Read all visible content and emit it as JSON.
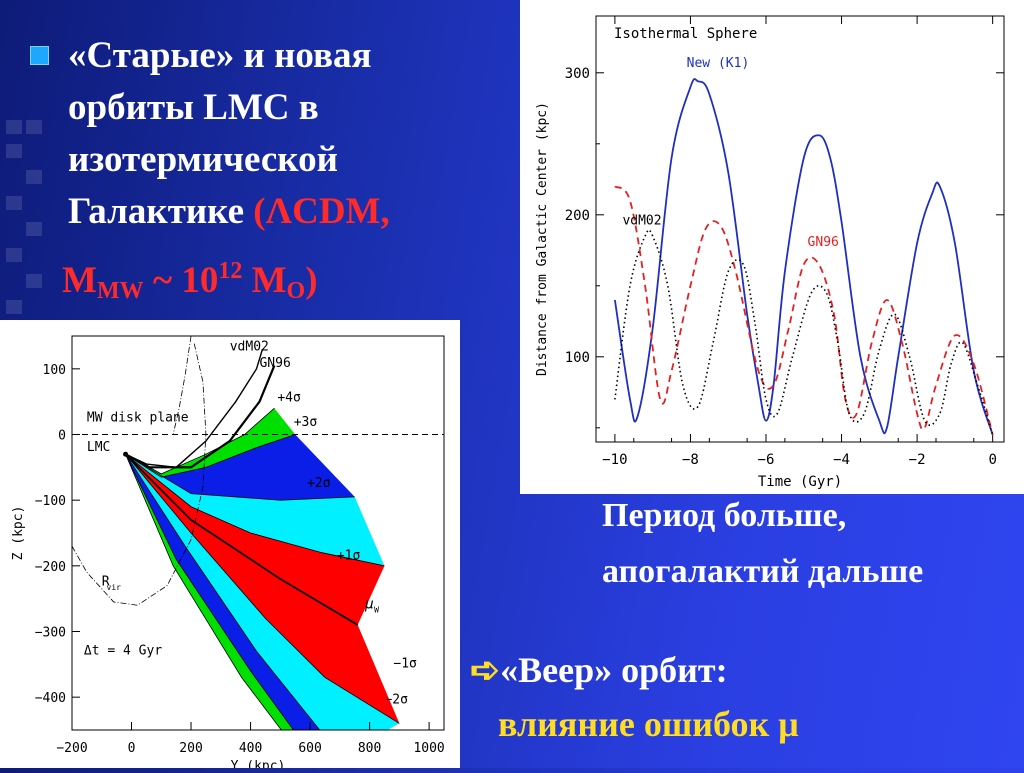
{
  "slide": {
    "bullet_marker": "square-bullet",
    "bullet_line1": "«Старые» и новая",
    "bullet_line2": "орбиты LMC в",
    "bullet_line3": "изотермической",
    "bullet_line4_text": "Галактике ",
    "bullet_line4_red": "(ΛCDM,",
    "mass_prefix": "M",
    "mass_sub": "MW",
    "mass_mid": " ~ 10",
    "mass_sup": "12",
    "mass_suffix": " M",
    "mass_sub2": "O",
    "mass_close": ")",
    "caption_line1": "Период больше,",
    "caption_line2": "апогалактий дальше",
    "fan_arrow": "➪",
    "fan_line1": "«Веер» орбит:",
    "fan_line2": "влияние ошибок μ"
  },
  "colors": {
    "background_start": "#0e1b78",
    "background_end": "#2f45f0",
    "red_text": "#ff2a2a",
    "yellow_text": "#ffdd22",
    "bullet": "#1ea7ff",
    "blue_curve": "#1f2fbf",
    "red_curve": "#e62020",
    "fan_green": "#00e000",
    "fan_blue": "#0a1ee8",
    "fan_cyan": "#00f0ff",
    "fan_red": "#ff0000"
  },
  "chart_data": [
    {
      "type": "line",
      "title": "Isothermal Sphere",
      "xlabel": "Time (Gyr)",
      "ylabel": "Distance from Galactic Center (kpc)",
      "xlim": [
        -10.5,
        0.3
      ],
      "ylim": [
        40,
        340
      ],
      "x_ticks": [
        -10,
        -8,
        -6,
        -4,
        -2,
        0
      ],
      "y_ticks": [
        100,
        200,
        300
      ],
      "series": [
        {
          "name": "New (K1)",
          "style": "solid",
          "color": "#1f2fbf",
          "x": [
            -10,
            -9.6,
            -9.4,
            -9.0,
            -8.5,
            -8.0,
            -7.8,
            -7.5,
            -7.0,
            -6.5,
            -6.2,
            -6.0,
            -5.8,
            -5.5,
            -5.0,
            -4.6,
            -4.3,
            -4.0,
            -3.5,
            -3.0,
            -2.8,
            -2.5,
            -2.0,
            -1.6,
            -1.4,
            -1.0,
            -0.5,
            0.0
          ],
          "y": [
            140,
            70,
            58,
            120,
            240,
            290,
            294,
            285,
            230,
            130,
            80,
            55,
            80,
            160,
            240,
            256,
            240,
            195,
            100,
            55,
            50,
            100,
            180,
            215,
            220,
            180,
            90,
            45
          ]
        },
        {
          "name": "GN96",
          "style": "dashed",
          "color": "#e62020",
          "x": [
            -10,
            -9.6,
            -9.2,
            -8.8,
            -8.5,
            -8.0,
            -7.6,
            -7.2,
            -6.8,
            -6.2,
            -5.8,
            -5.4,
            -5.0,
            -4.6,
            -4.2,
            -3.9,
            -3.6,
            -3.2,
            -2.8,
            -2.4,
            -2.0,
            -1.8,
            -1.5,
            -1.0,
            -0.5,
            0.0
          ],
          "y": [
            220,
            210,
            150,
            70,
            90,
            150,
            190,
            192,
            160,
            90,
            80,
            120,
            165,
            165,
            130,
            70,
            60,
            110,
            140,
            110,
            60,
            50,
            80,
            115,
            95,
            45
          ]
        },
        {
          "name": "vdM02",
          "style": "dotted",
          "color": "#000000",
          "x": [
            -10,
            -9.6,
            -9.2,
            -9.0,
            -8.6,
            -8.2,
            -7.8,
            -7.4,
            -7.0,
            -6.6,
            -6.3,
            -6.0,
            -5.7,
            -5.3,
            -4.8,
            -4.4,
            -4.1,
            -3.8,
            -3.4,
            -3.0,
            -2.6,
            -2.2,
            -1.8,
            -1.4,
            -1.1,
            -0.8,
            -0.4,
            0.0
          ],
          "y": [
            70,
            150,
            185,
            185,
            150,
            80,
            65,
            110,
            160,
            165,
            125,
            70,
            60,
            100,
            145,
            145,
            110,
            60,
            60,
            105,
            130,
            100,
            55,
            60,
            95,
            110,
            80,
            45
          ]
        }
      ],
      "annotations": [
        "New (K1)",
        "vdM02",
        "GN96"
      ]
    },
    {
      "type": "line",
      "xlabel": "Y (kpc)",
      "ylabel": "Z (kpc)",
      "xlim": [
        -200,
        1050
      ],
      "ylim": [
        -450,
        150
      ],
      "x_ticks": [
        -200,
        0,
        200,
        400,
        600,
        800,
        1000
      ],
      "y_ticks": [
        100,
        0,
        -100,
        -200,
        -300,
        -400
      ],
      "reference_line": {
        "label": "MW disk plane",
        "z": 0,
        "style": "dashed"
      },
      "origin": {
        "label": "LMC",
        "y": -20,
        "z": -30
      },
      "fan_boundaries": {
        "plus4sigma": [
          [
            -20,
            -30
          ],
          [
            100,
            -60
          ],
          [
            250,
            -30
          ],
          [
            380,
            0
          ],
          [
            480,
            40
          ]
        ],
        "plus3sigma": [
          [
            -20,
            -30
          ],
          [
            100,
            -65
          ],
          [
            250,
            -50
          ],
          [
            420,
            -20
          ],
          [
            550,
            0
          ]
        ],
        "plus2sigma": [
          [
            -20,
            -30
          ],
          [
            200,
            -90
          ],
          [
            500,
            -100
          ],
          [
            750,
            -95
          ]
        ],
        "plus1sigma": [
          [
            -20,
            -30
          ],
          [
            200,
            -110
          ],
          [
            400,
            -150
          ],
          [
            640,
            -180
          ],
          [
            850,
            -200
          ]
        ],
        "mu_w": [
          [
            -20,
            -30
          ],
          [
            200,
            -130
          ],
          [
            500,
            -220
          ],
          [
            760,
            -290
          ]
        ],
        "minus1sigma": [
          [
            -20,
            -30
          ],
          [
            200,
            -150
          ],
          [
            450,
            -280
          ],
          [
            650,
            -370
          ],
          [
            900,
            -440
          ]
        ],
        "minus2sigma": [
          [
            -20,
            -30
          ],
          [
            180,
            -170
          ],
          [
            420,
            -330
          ],
          [
            650,
            -460
          ],
          [
            820,
            -460
          ]
        ],
        "minus3sigma": [
          [
            -20,
            -30
          ],
          [
            150,
            -190
          ],
          [
            400,
            -360
          ],
          [
            560,
            -460
          ]
        ],
        "minus4sigma": [
          [
            -20,
            -30
          ],
          [
            140,
            -200
          ],
          [
            370,
            -370
          ],
          [
            520,
            -460
          ]
        ]
      },
      "band_order": [
        "green",
        "blue",
        "cyan",
        "red",
        "red",
        "cyan",
        "blue",
        "green"
      ],
      "orbit_vdM02": [
        [
          -20,
          -30
        ],
        [
          50,
          -45
        ],
        [
          150,
          -50
        ],
        [
          250,
          -10
        ],
        [
          350,
          50
        ],
        [
          420,
          100
        ],
        [
          440,
          130
        ]
      ],
      "orbit_GN96": [
        [
          -20,
          -30
        ],
        [
          60,
          -50
        ],
        [
          200,
          -50
        ],
        [
          330,
          -10
        ],
        [
          430,
          50
        ],
        [
          480,
          105
        ]
      ],
      "virial_radius_label": "R_vir",
      "virial_radius": [
        [
          -200,
          -170
        ],
        [
          -150,
          -210
        ],
        [
          -60,
          -255
        ],
        [
          20,
          -260
        ],
        [
          120,
          -230
        ],
        [
          200,
          -160
        ],
        [
          240,
          -80
        ],
        [
          250,
          0
        ],
        [
          240,
          80
        ],
        [
          210,
          140
        ]
      ],
      "extra_dashdot": [
        [
          200,
          150
        ],
        [
          180,
          90
        ],
        [
          160,
          40
        ],
        [
          140,
          0
        ]
      ],
      "sigma_labels": [
        "+4σ",
        "+3σ",
        "+2σ",
        "+1σ",
        "μ_W",
        "−1σ",
        "−2σ"
      ],
      "annotations": [
        "vdM02",
        "GN96",
        "MW disk plane",
        "LMC",
        "R_vir",
        "Δt = 4 Gyr"
      ]
    }
  ]
}
